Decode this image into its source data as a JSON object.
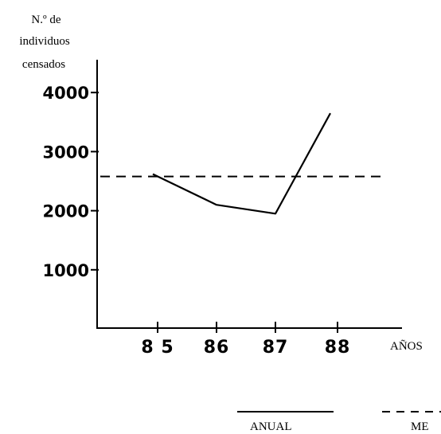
{
  "chart_data": {
    "type": "line",
    "ylabel_lines": [
      "N.º de",
      "individuos",
      "censados"
    ],
    "xlabel": "AÑOS",
    "x_categories": [
      "85",
      "86",
      "87",
      "88"
    ],
    "x_tick_labels": [
      "8 5",
      "86",
      "87",
      "88"
    ],
    "y_ticks": [
      1000,
      2000,
      3000,
      4000
    ],
    "y_tick_labels": [
      "1000",
      "2000",
      "3000",
      "4000"
    ],
    "ylim": [
      0,
      4000
    ],
    "grid": false,
    "legend_position": "bottom-right",
    "series": [
      {
        "name": "ANUAL",
        "style": "solid",
        "values": [
          2620,
          2100,
          1950,
          3650
        ]
      },
      {
        "name": "ME",
        "style": "dashed",
        "constant": 2580
      }
    ],
    "line_color": "#000000"
  }
}
